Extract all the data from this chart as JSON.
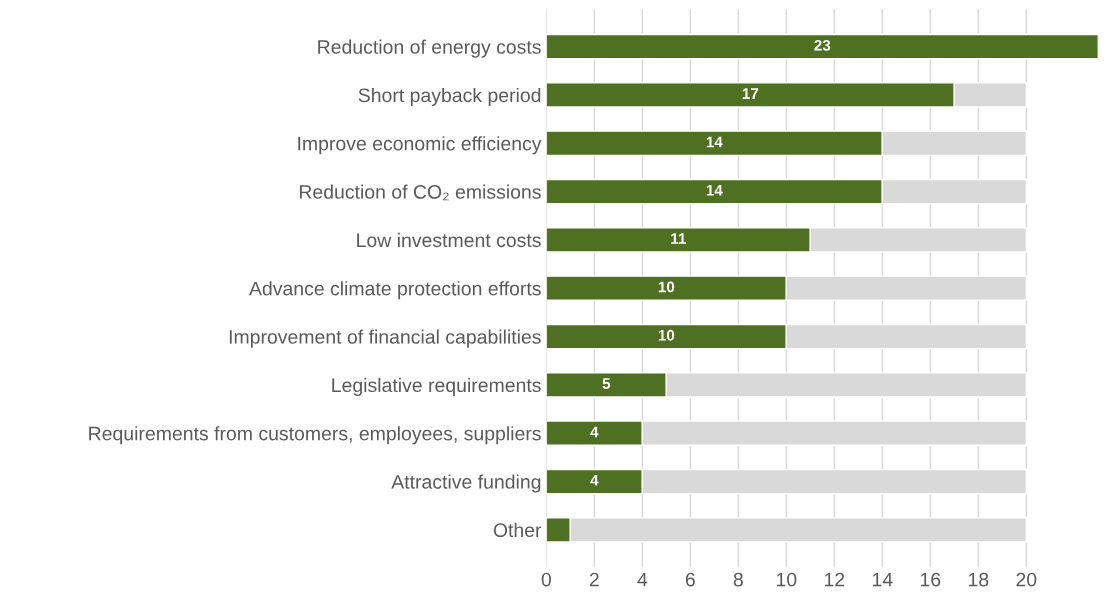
{
  "chart_data": {
    "type": "bar",
    "orientation": "horizontal",
    "stacked": true,
    "categories": [
      "Reduction of energy costs",
      "Short payback period",
      "Improve economic efficiency",
      "Reduction of CO₂ emissions",
      "Low investment costs",
      "Advance climate protection efforts",
      "Improvement of financial capabilities",
      "Legislative requirements",
      "Requirements from customers, employees, suppliers",
      "Attractive funding",
      "Other"
    ],
    "series": [
      {
        "color": "#4e7021",
        "values": [
          23,
          17,
          14,
          14,
          11,
          10,
          10,
          5,
          4,
          4,
          1
        ],
        "value_labels": [
          "23",
          "17",
          "14",
          "14",
          "11",
          "10",
          "10",
          "5",
          "4",
          "4",
          null
        ]
      },
      {
        "color": "#d9d9d9",
        "values": [
          null,
          3,
          6,
          6,
          9,
          10,
          10,
          15,
          16,
          16,
          19
        ]
      }
    ],
    "xlim": [
      0,
      23
    ],
    "xticks": [
      0,
      2,
      4,
      6,
      8,
      10,
      12,
      14,
      16,
      18,
      20
    ],
    "grid": "x",
    "legend": false
  }
}
